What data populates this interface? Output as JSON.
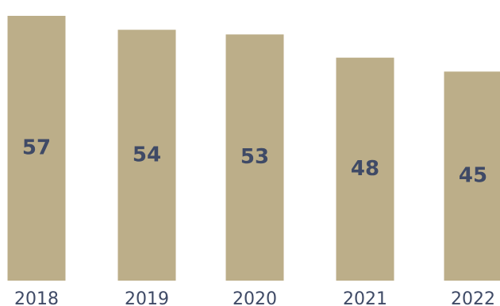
{
  "chart_data": {
    "type": "bar",
    "categories": [
      "2018",
      "2019",
      "2020",
      "2021",
      "2022"
    ],
    "values": [
      57,
      54,
      53,
      48,
      45
    ],
    "title": "",
    "xlabel": "",
    "ylabel": "",
    "data_labels": [
      "57",
      "54",
      "53",
      "48",
      "45"
    ],
    "grid": false,
    "legend": "none"
  },
  "colors": {
    "bar": "#bcae89",
    "label": "#3f4a66",
    "tick": "#3f4a66",
    "background": "#ffffff"
  }
}
